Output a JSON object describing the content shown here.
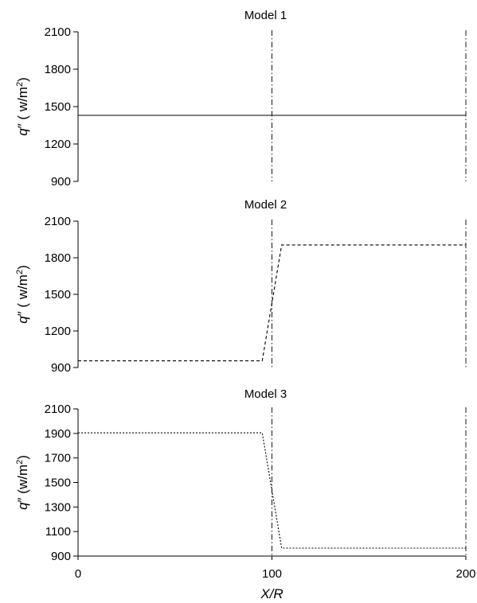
{
  "chart_data": [
    {
      "type": "line",
      "title": "Model 1",
      "ylabel": {
        "q": "q",
        "prime": "″",
        "unit_open": " ( w/m",
        "sup": "2",
        "unit_close": ")"
      },
      "xlim": [
        0,
        200
      ],
      "ylim": [
        900,
        2100
      ],
      "yticks": [
        "900",
        "1200",
        "1500",
        "1800",
        "2100"
      ],
      "xticks": [],
      "vlines": [
        100,
        200
      ],
      "series": [
        {
          "style": "solid",
          "x": [
            0,
            200
          ],
          "y": [
            1430,
            1430
          ]
        }
      ]
    },
    {
      "type": "line",
      "title": "Model 2",
      "ylabel": {
        "q": "q",
        "prime": "″",
        "unit_open": " ( w/m",
        "sup": "2",
        "unit_close": ")"
      },
      "xlim": [
        0,
        200
      ],
      "ylim": [
        900,
        2100
      ],
      "yticks": [
        "900",
        "1200",
        "1500",
        "1800",
        "2100"
      ],
      "xticks": [],
      "vlines": [
        100,
        200
      ],
      "series": [
        {
          "style": "dashed",
          "x": [
            0,
            95,
            105,
            200
          ],
          "y": [
            955,
            955,
            1905,
            1905
          ]
        }
      ]
    },
    {
      "type": "line",
      "title": "Model 3",
      "ylabel": {
        "q": "q",
        "prime": "″",
        "unit_open": " (w/m",
        "sup": "2",
        "unit_close": ")"
      },
      "xlim": [
        0,
        200
      ],
      "ylim": [
        900,
        2100
      ],
      "yticks": [
        "900",
        "1100",
        "1300",
        "1500",
        "1700",
        "1900",
        "2100"
      ],
      "xticks": [
        "0",
        "100",
        "200"
      ],
      "xlabel": "X/R",
      "vlines": [
        100,
        200
      ],
      "series": [
        {
          "style": "dotted",
          "x": [
            0,
            95,
            105,
            200
          ],
          "y": [
            1905,
            1905,
            965,
            965
          ]
        }
      ]
    }
  ]
}
